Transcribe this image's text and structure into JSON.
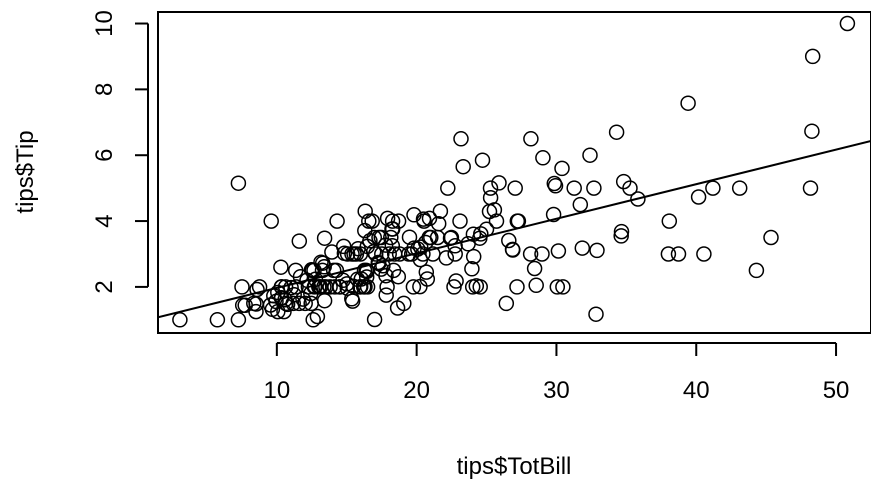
{
  "chart_data": {
    "type": "scatter",
    "xlabel": "tips$TotBill",
    "ylabel": "tips$Tip",
    "xlim": [
      1.5,
      52.5
    ],
    "ylim": [
      0.6,
      10.35
    ],
    "x_ticks": [
      10,
      20,
      30,
      40,
      50
    ],
    "x_tick_labels": [
      "10",
      "20",
      "30",
      "40",
      "50"
    ],
    "y_ticks": [
      2,
      4,
      6,
      8,
      10
    ],
    "y_tick_labels": [
      "2",
      "4",
      "6",
      "8",
      "10"
    ],
    "grid": false,
    "point_style": "open-circle",
    "regression_line": {
      "intercept": 0.92,
      "slope": 0.105
    },
    "points": [
      [
        3.07,
        1.0
      ],
      [
        5.75,
        1.0
      ],
      [
        7.25,
        1.0
      ],
      [
        7.25,
        5.15
      ],
      [
        7.51,
        2.0
      ],
      [
        7.56,
        1.44
      ],
      [
        7.74,
        1.44
      ],
      [
        8.35,
        1.5
      ],
      [
        8.51,
        1.25
      ],
      [
        8.52,
        1.48
      ],
      [
        8.58,
        1.92
      ],
      [
        8.77,
        2.0
      ],
      [
        9.55,
        1.45
      ],
      [
        9.6,
        4.0
      ],
      [
        9.68,
        1.32
      ],
      [
        9.78,
        1.73
      ],
      [
        9.94,
        1.56
      ],
      [
        10.07,
        1.25
      ],
      [
        10.07,
        1.83
      ],
      [
        10.29,
        2.6
      ],
      [
        10.33,
        1.67
      ],
      [
        10.33,
        2.0
      ],
      [
        10.34,
        1.66
      ],
      [
        10.34,
        2.0
      ],
      [
        10.51,
        1.25
      ],
      [
        10.59,
        1.61
      ],
      [
        10.63,
        2.0
      ],
      [
        10.65,
        1.5
      ],
      [
        10.77,
        1.47
      ],
      [
        11.02,
        1.98
      ],
      [
        11.17,
        1.5
      ],
      [
        11.24,
        1.76
      ],
      [
        11.35,
        2.5
      ],
      [
        11.38,
        2.0
      ],
      [
        11.59,
        1.5
      ],
      [
        11.61,
        3.39
      ],
      [
        11.69,
        2.31
      ],
      [
        11.87,
        1.63
      ],
      [
        12.03,
        1.5
      ],
      [
        12.16,
        2.2
      ],
      [
        12.26,
        2.0
      ],
      [
        12.43,
        1.8
      ],
      [
        12.46,
        1.5
      ],
      [
        12.48,
        2.52
      ],
      [
        12.54,
        2.5
      ],
      [
        12.6,
        1.0
      ],
      [
        12.66,
        2.5
      ],
      [
        12.69,
        2.0
      ],
      [
        12.74,
        2.01
      ],
      [
        12.76,
        2.23
      ],
      [
        12.9,
        1.1
      ],
      [
        13.0,
        2.0
      ],
      [
        13.03,
        2.0
      ],
      [
        13.13,
        2.0
      ],
      [
        13.16,
        2.75
      ],
      [
        13.27,
        2.5
      ],
      [
        13.28,
        2.72
      ],
      [
        13.37,
        2.0
      ],
      [
        13.39,
        2.61
      ],
      [
        13.42,
        3.48
      ],
      [
        13.42,
        1.58
      ],
      [
        13.51,
        2.0
      ],
      [
        13.81,
        2.0
      ],
      [
        13.94,
        3.06
      ],
      [
        14.07,
        2.5
      ],
      [
        14.15,
        2.0
      ],
      [
        14.26,
        2.5
      ],
      [
        14.31,
        4.0
      ],
      [
        14.48,
        2.0
      ],
      [
        14.52,
        2.0
      ],
      [
        14.73,
        2.2
      ],
      [
        14.78,
        3.23
      ],
      [
        14.83,
        3.02
      ],
      [
        15.01,
        2.09
      ],
      [
        15.04,
        1.96
      ],
      [
        15.06,
        3.0
      ],
      [
        15.36,
        1.64
      ],
      [
        15.38,
        3.0
      ],
      [
        15.42,
        1.57
      ],
      [
        15.48,
        2.02
      ],
      [
        15.53,
        3.0
      ],
      [
        15.69,
        3.0
      ],
      [
        15.77,
        2.23
      ],
      [
        15.81,
        3.16
      ],
      [
        15.95,
        2.0
      ],
      [
        15.98,
        3.0
      ],
      [
        16.0,
        2.0
      ],
      [
        16.04,
        2.24
      ],
      [
        16.21,
        2.0
      ],
      [
        16.27,
        2.5
      ],
      [
        16.29,
        3.71
      ],
      [
        16.31,
        2.0
      ],
      [
        16.32,
        4.3
      ],
      [
        16.4,
        2.5
      ],
      [
        16.43,
        2.3
      ],
      [
        16.45,
        2.47
      ],
      [
        16.47,
        3.23
      ],
      [
        16.49,
        2.0
      ],
      [
        16.58,
        4.0
      ],
      [
        16.66,
        3.4
      ],
      [
        16.82,
        4.0
      ],
      [
        16.93,
        3.07
      ],
      [
        16.97,
        3.5
      ],
      [
        16.99,
        1.01
      ],
      [
        17.07,
        3.0
      ],
      [
        17.26,
        2.74
      ],
      [
        17.29,
        2.71
      ],
      [
        17.31,
        3.5
      ],
      [
        17.46,
        2.54
      ],
      [
        17.47,
        3.5
      ],
      [
        17.51,
        3.0
      ],
      [
        17.59,
        2.64
      ],
      [
        17.78,
        3.27
      ],
      [
        17.81,
        2.34
      ],
      [
        17.82,
        1.75
      ],
      [
        17.89,
        2.0
      ],
      [
        17.92,
        4.08
      ],
      [
        18.04,
        3.0
      ],
      [
        18.15,
        3.5
      ],
      [
        18.24,
        3.76
      ],
      [
        18.26,
        3.25
      ],
      [
        18.28,
        4.0
      ],
      [
        18.29,
        3.76
      ],
      [
        18.35,
        2.5
      ],
      [
        18.43,
        3.0
      ],
      [
        18.64,
        1.36
      ],
      [
        18.69,
        2.31
      ],
      [
        18.71,
        4.0
      ],
      [
        18.78,
        3.0
      ],
      [
        19.08,
        1.5
      ],
      [
        19.44,
        3.0
      ],
      [
        19.49,
        3.51
      ],
      [
        19.65,
        3.0
      ],
      [
        19.77,
        2.0
      ],
      [
        19.81,
        4.19
      ],
      [
        19.82,
        3.18
      ],
      [
        20.08,
        3.15
      ],
      [
        20.23,
        2.01
      ],
      [
        20.27,
        2.83
      ],
      [
        20.29,
        3.21
      ],
      [
        20.45,
        3.0
      ],
      [
        20.49,
        4.06
      ],
      [
        20.53,
        4.0
      ],
      [
        20.65,
        3.35
      ],
      [
        20.69,
        2.45
      ],
      [
        20.76,
        2.24
      ],
      [
        20.9,
        3.5
      ],
      [
        20.92,
        4.08
      ],
      [
        21.01,
        3.5
      ],
      [
        21.16,
        3.0
      ],
      [
        21.5,
        3.5
      ],
      [
        21.58,
        3.92
      ],
      [
        21.7,
        4.3
      ],
      [
        22.12,
        2.88
      ],
      [
        22.23,
        5.0
      ],
      [
        22.42,
        3.48
      ],
      [
        22.49,
        3.5
      ],
      [
        22.67,
        2.0
      ],
      [
        22.75,
        3.25
      ],
      [
        22.76,
        3.0
      ],
      [
        22.82,
        2.18
      ],
      [
        23.1,
        4.0
      ],
      [
        23.17,
        6.5
      ],
      [
        23.33,
        5.65
      ],
      [
        23.68,
        3.31
      ],
      [
        23.95,
        2.55
      ],
      [
        24.01,
        2.0
      ],
      [
        24.06,
        3.6
      ],
      [
        24.08,
        2.92
      ],
      [
        24.27,
        2.03
      ],
      [
        24.52,
        3.48
      ],
      [
        24.55,
        2.0
      ],
      [
        24.59,
        3.61
      ],
      [
        24.71,
        5.85
      ],
      [
        25.0,
        3.75
      ],
      [
        25.21,
        4.29
      ],
      [
        25.28,
        5.0
      ],
      [
        25.29,
        4.71
      ],
      [
        25.56,
        4.34
      ],
      [
        25.71,
        4.0
      ],
      [
        25.89,
        5.16
      ],
      [
        26.41,
        1.5
      ],
      [
        26.59,
        3.41
      ],
      [
        26.86,
        3.14
      ],
      [
        26.88,
        3.12
      ],
      [
        27.05,
        5.0
      ],
      [
        27.18,
        2.0
      ],
      [
        27.2,
        4.0
      ],
      [
        27.28,
        4.0
      ],
      [
        28.15,
        3.0
      ],
      [
        28.17,
        6.5
      ],
      [
        28.44,
        2.56
      ],
      [
        28.55,
        2.05
      ],
      [
        28.97,
        3.0
      ],
      [
        29.03,
        5.92
      ],
      [
        29.8,
        4.2
      ],
      [
        29.85,
        5.14
      ],
      [
        29.93,
        5.07
      ],
      [
        30.06,
        2.0
      ],
      [
        30.14,
        3.09
      ],
      [
        30.4,
        5.6
      ],
      [
        30.46,
        2.0
      ],
      [
        31.27,
        5.0
      ],
      [
        31.71,
        4.5
      ],
      [
        31.85,
        3.18
      ],
      [
        32.4,
        6.0
      ],
      [
        32.68,
        5.0
      ],
      [
        32.83,
        1.17
      ],
      [
        32.9,
        3.11
      ],
      [
        34.3,
        6.7
      ],
      [
        34.63,
        3.55
      ],
      [
        34.65,
        3.68
      ],
      [
        34.81,
        5.2
      ],
      [
        35.26,
        5.0
      ],
      [
        35.83,
        4.67
      ],
      [
        38.01,
        3.0
      ],
      [
        38.07,
        4.0
      ],
      [
        38.73,
        3.0
      ],
      [
        39.42,
        7.58
      ],
      [
        40.17,
        4.73
      ],
      [
        40.55,
        3.0
      ],
      [
        41.19,
        5.0
      ],
      [
        43.11,
        5.0
      ],
      [
        44.3,
        2.5
      ],
      [
        45.35,
        3.5
      ],
      [
        48.17,
        5.0
      ],
      [
        48.27,
        6.73
      ],
      [
        48.33,
        9.0
      ],
      [
        50.81,
        10.0
      ]
    ]
  }
}
